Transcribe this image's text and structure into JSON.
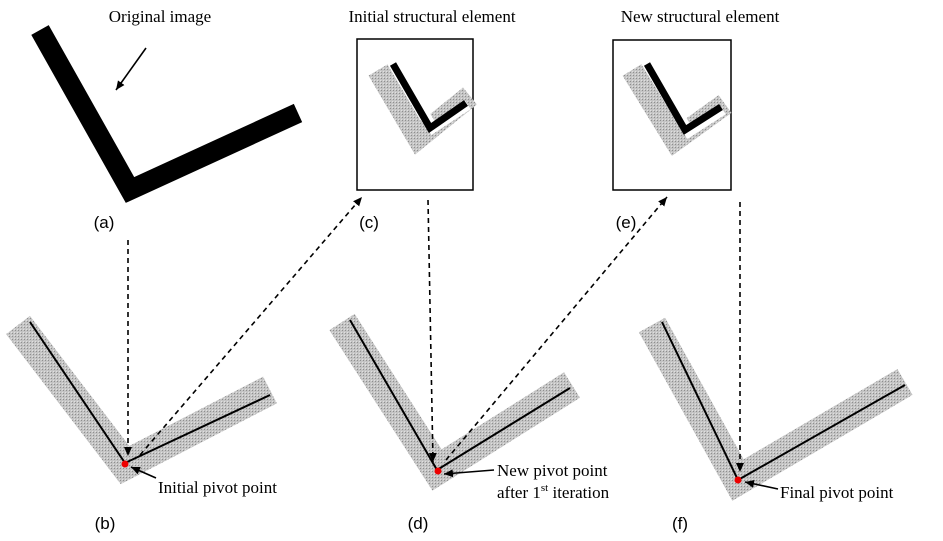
{
  "titles": {
    "a": "Original image",
    "c": "Initial structural element",
    "e": "New structural element"
  },
  "panel_labels": {
    "a": "(a)",
    "b": "(b)",
    "c": "(c)",
    "d": "(d)",
    "e": "(e)",
    "f": "(f)"
  },
  "annotations": {
    "b": "Initial pivot point",
    "d": {
      "line1": "New pivot point",
      "line2_prefix": "after 1",
      "line2_superscript": "st",
      "line2_suffix": "iteration"
    },
    "f": "Final pivot point"
  }
}
